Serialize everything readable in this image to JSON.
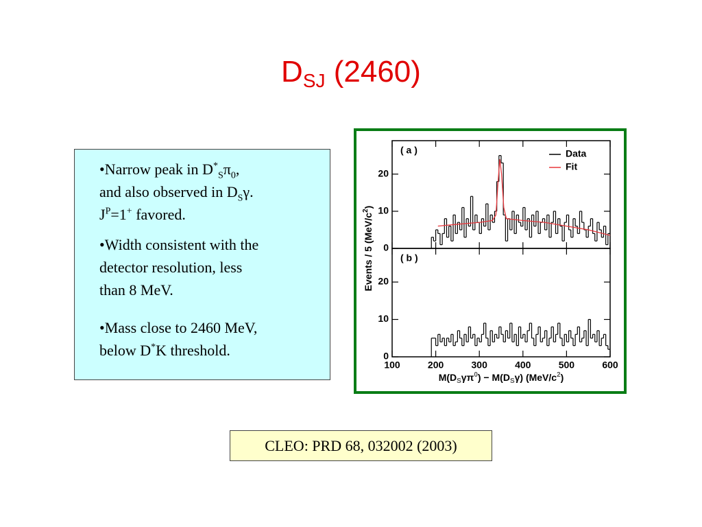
{
  "header": {
    "title": "D",
    "title_sub": "SJ",
    "title_rest": " (2460)"
  },
  "bullets": [
    [
      "•Narrow peak in D",
      "*",
      "S",
      "π",
      "0",
      ",",
      "and also observed in D",
      "S",
      "γ.",
      "J",
      "P",
      "=1",
      "+",
      " favored."
    ],
    [
      "•Width consistent with the",
      "detector resolution, less",
      "than 8 MeV."
    ],
    [
      "•Mass close to 2460 MeV,",
      "below D",
      "*",
      "K threshold."
    ]
  ],
  "citation": "CLEO: PRD 68, 032002 (2003)",
  "plot": {
    "ylabel": [
      "Events / 5 (MeV/c",
      "2",
      ")"
    ],
    "xlabel": [
      "M(D",
      "S",
      "γπ",
      "0",
      ") − M(D",
      "S",
      "γ) (MeV/c",
      "2",
      ")"
    ]
  },
  "chart_data": [
    {
      "type": "histogram",
      "label": "( a )",
      "bins": [
        190,
        195,
        200,
        205,
        210,
        215,
        220,
        225,
        230,
        235,
        240,
        245,
        250,
        255,
        260,
        265,
        270,
        275,
        280,
        285,
        290,
        295,
        300,
        305,
        310,
        315,
        320,
        325,
        330,
        335,
        340,
        345,
        350,
        355,
        360,
        365,
        370,
        375,
        380,
        385,
        390,
        395,
        400,
        405,
        410,
        415,
        420,
        425,
        430,
        435,
        440,
        445,
        450,
        455,
        460,
        465,
        470,
        475,
        480,
        485,
        490,
        495,
        500,
        505,
        510,
        515,
        520,
        525,
        530,
        535,
        540,
        545,
        550,
        555,
        560,
        565,
        570,
        575,
        580,
        585,
        590,
        595,
        600
      ],
      "series": [
        {
          "name": "Data",
          "color": "#000000",
          "values": [
            3,
            2,
            5,
            4,
            1,
            4,
            8,
            3,
            6,
            2,
            9,
            4,
            7,
            5,
            11,
            3,
            8,
            6,
            14,
            5,
            9,
            7,
            4,
            8,
            6,
            12,
            5,
            9,
            7,
            10,
            18,
            25,
            23,
            9,
            2,
            8,
            5,
            10,
            4,
            9,
            7,
            6,
            11,
            5,
            8,
            3,
            9,
            6,
            10,
            4,
            7,
            8,
            5,
            9,
            3,
            7,
            10,
            4,
            8,
            6,
            2,
            7,
            9,
            5,
            3,
            8,
            6,
            4,
            10,
            7,
            5,
            3,
            6,
            8,
            4,
            2,
            7,
            5,
            3,
            6,
            1,
            4
          ]
        }
      ],
      "lines": [
        {
          "name": "Fit",
          "color": "#e8383d",
          "x": [
            205,
            250,
            300,
            330,
            338,
            343,
            347,
            351,
            356,
            362,
            400,
            450,
            500,
            550,
            600
          ],
          "values": [
            6,
            6.5,
            7,
            7.5,
            9,
            18,
            24,
            20,
            11,
            8,
            7.5,
            7,
            6,
            5,
            3.5
          ]
        }
      ],
      "xlim": [
        100,
        600
      ],
      "ylim": [
        0,
        29
      ],
      "yticks": [
        0,
        10,
        20
      ],
      "xticks": [
        100,
        200,
        300,
        400,
        500,
        600
      ]
    },
    {
      "type": "histogram",
      "label": "( b )",
      "bins": [
        190,
        195,
        200,
        205,
        210,
        215,
        220,
        225,
        230,
        235,
        240,
        245,
        250,
        255,
        260,
        265,
        270,
        275,
        280,
        285,
        290,
        295,
        300,
        305,
        310,
        315,
        320,
        325,
        330,
        335,
        340,
        345,
        350,
        355,
        360,
        365,
        370,
        375,
        380,
        385,
        390,
        395,
        400,
        405,
        410,
        415,
        420,
        425,
        430,
        435,
        440,
        445,
        450,
        455,
        460,
        465,
        470,
        475,
        480,
        485,
        490,
        495,
        500,
        505,
        510,
        515,
        520,
        525,
        530,
        535,
        540,
        545,
        550,
        555,
        560,
        565,
        570,
        575,
        580,
        585,
        590,
        595,
        600
      ],
      "values": [
        5,
        5,
        3,
        6,
        4,
        5,
        3,
        5,
        4,
        6,
        3,
        4,
        7,
        5,
        3,
        6,
        4,
        8,
        5,
        6,
        3,
        5,
        4,
        6,
        9,
        5,
        3,
        7,
        4,
        6,
        5,
        8,
        6,
        4,
        7,
        5,
        9,
        4,
        6,
        3,
        8,
        5,
        6,
        4,
        7,
        9,
        5,
        3,
        6,
        8,
        4,
        5,
        7,
        3,
        5,
        8,
        4,
        6,
        9,
        5,
        3,
        6,
        4,
        7,
        5,
        3,
        6,
        8,
        4,
        5,
        7,
        3,
        10,
        5,
        6,
        4,
        7,
        3,
        5,
        6,
        3,
        2
      ],
      "color": "#000000",
      "xlim": [
        100,
        600
      ],
      "ylim": [
        0,
        29
      ],
      "yticks": [
        0,
        10,
        20
      ],
      "xticks": [
        100,
        200,
        300,
        400,
        500,
        600
      ]
    }
  ]
}
